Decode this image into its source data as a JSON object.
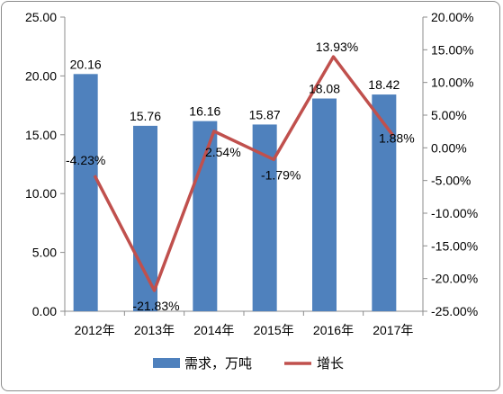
{
  "chart_data": {
    "type": "bar+line",
    "categories": [
      "2012年",
      "2013年",
      "2014年",
      "2015年",
      "2016年",
      "2017年"
    ],
    "series": [
      {
        "name": "需求，万吨",
        "type": "bar",
        "axis": "left",
        "color": "#4F81BD",
        "values": [
          20.16,
          15.76,
          16.16,
          15.87,
          18.08,
          18.42
        ],
        "labels": [
          "20.16",
          "15.76",
          "16.16",
          "15.87",
          "18.08",
          "18.42"
        ]
      },
      {
        "name": "增长",
        "type": "line",
        "axis": "right",
        "color": "#C0504D",
        "values": [
          -4.23,
          -21.83,
          2.54,
          -1.79,
          13.93,
          1.88
        ],
        "labels": [
          "-4.23%",
          "-21.83%",
          "2.54%",
          "-1.79%",
          "13.93%",
          "1.88%"
        ]
      }
    ],
    "y_left": {
      "range": [
        0,
        25
      ],
      "ticks": [
        "0.00",
        "5.00",
        "10.00",
        "15.00",
        "20.00",
        "25.00"
      ]
    },
    "y_right": {
      "range": [
        -25,
        20
      ],
      "ticks": [
        "-25.00%",
        "-20.00%",
        "-15.00%",
        "-10.00%",
        "-5.00%",
        "0.00%",
        "5.00%",
        "10.00%",
        "15.00%",
        "20.00%"
      ]
    },
    "grid": false,
    "legend_position": "bottom"
  }
}
